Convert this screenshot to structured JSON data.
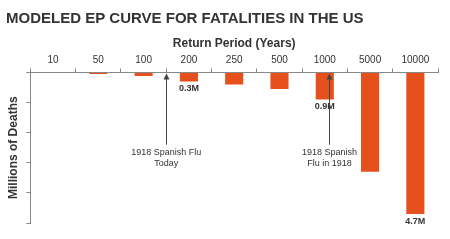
{
  "chart_data": {
    "type": "bar",
    "title": "MODELED EP CURVE FOR FATALITIES IN THE US",
    "x_label": "Return Period (Years)",
    "y_label": "Millions of Deaths",
    "categories": [
      "10",
      "50",
      "100",
      "200",
      "250",
      "500",
      "1000",
      "5000",
      "10000"
    ],
    "values": [
      0,
      0.05,
      0.12,
      0.3,
      0.4,
      0.55,
      0.9,
      3.3,
      4.7
    ],
    "value_labels": [
      null,
      null,
      null,
      "0.3M",
      null,
      null,
      "0.9M",
      null,
      "4.7M"
    ],
    "data_labels": true,
    "color": "#e5501c",
    "ylim": [
      0,
      5
    ],
    "yticks": [
      0,
      1,
      2,
      3,
      4,
      5
    ],
    "grid": false,
    "tick_labels": "x",
    "annotations": [
      "1918 Spanish Flu Today",
      "1918 Spanish Flu in 1918"
    ]
  }
}
